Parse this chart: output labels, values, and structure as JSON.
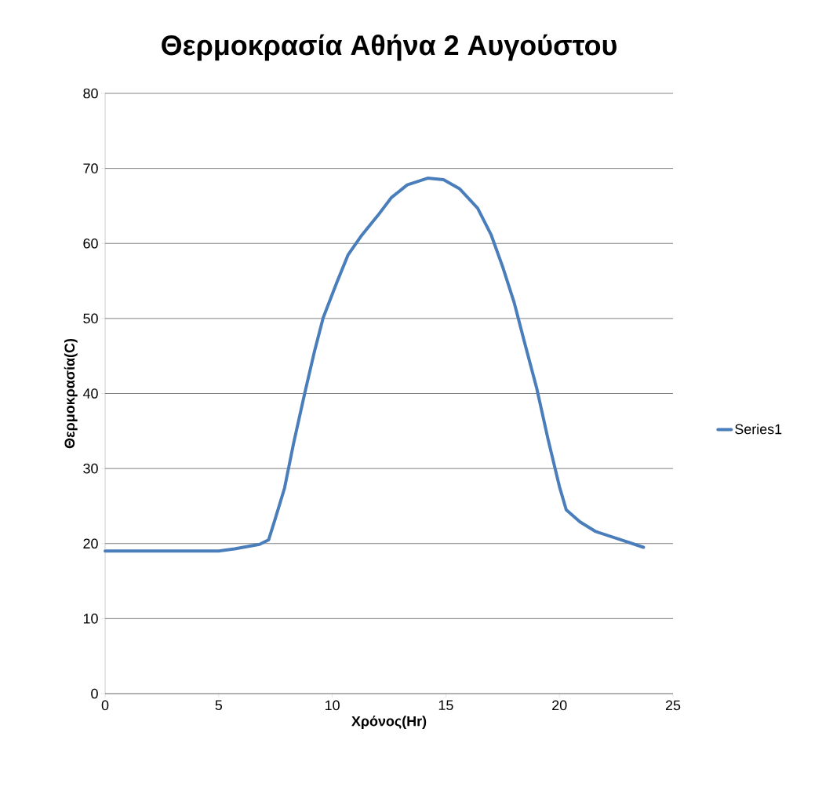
{
  "chart_data": {
    "type": "line",
    "title": "Θερμοκρασία Αθήνα 2 Αυγούστου",
    "xlabel": "Χρόνος(Hr)",
    "ylabel": "Θερμοκρασία(C)",
    "x": [
      0,
      5.0,
      5.7,
      6.8,
      7.2,
      7.5,
      7.9,
      8.3,
      8.8,
      9.2,
      9.6,
      10.2,
      10.7,
      11.3,
      12.0,
      12.6,
      13.3,
      14.2,
      14.9,
      15.6,
      16.4,
      17.0,
      17.5,
      18.0,
      18.5,
      19.0,
      19.5,
      20.0,
      20.3,
      20.9,
      21.6,
      22.7,
      23.7
    ],
    "series": [
      {
        "name": "Series1",
        "color": "#4a7ebb",
        "values": [
          19,
          19,
          19.3,
          19.9,
          20.5,
          23.4,
          27.4,
          33.4,
          40.2,
          45.4,
          50.1,
          54.8,
          58.5,
          61.1,
          63.7,
          66.1,
          67.8,
          68.7,
          68.5,
          67.3,
          64.7,
          61.1,
          56.9,
          52.2,
          46.4,
          40.7,
          33.9,
          27.6,
          24.5,
          22.9,
          21.6,
          20.5,
          19.5
        ]
      }
    ],
    "xlim": [
      0,
      25
    ],
    "ylim": [
      0,
      80
    ],
    "xticks": [
      0,
      5,
      10,
      15,
      20,
      25
    ],
    "yticks": [
      0,
      10,
      20,
      30,
      40,
      50,
      60,
      70,
      80
    ],
    "grid": "y",
    "legend": "right",
    "marker": "none",
    "line_style": "solid"
  }
}
